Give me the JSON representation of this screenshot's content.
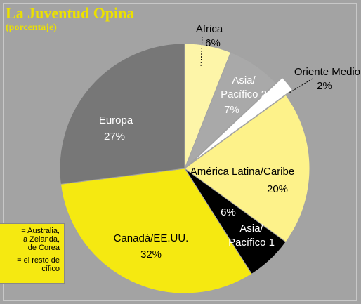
{
  "chart_data": {
    "type": "pie",
    "title": "La Juventud Opina",
    "subtitle": "(porcentaje)",
    "categories": [
      "Africa",
      "Asia/\nPacífico 2",
      "Oriente Medio",
      "América Latina/Caribe",
      "Asia/\nPacífico 1",
      "Canadá/EE.UU.",
      "Europa"
    ],
    "values": [
      6,
      7,
      2,
      20,
      6,
      32,
      27
    ],
    "value_labels": [
      "6%",
      "7%",
      "2%",
      "20%",
      "6%",
      "32%",
      "27%"
    ],
    "colors": [
      "#fdf5a8",
      "#a9a9a9",
      "#ffffff",
      "#fdf28a",
      "#000000",
      "#f5e911",
      "#777777"
    ],
    "legend_notes": [
      "= Australia,",
      "a Zelanda,",
      "de Corea",
      "",
      "= el resto de",
      "cífico"
    ]
  }
}
